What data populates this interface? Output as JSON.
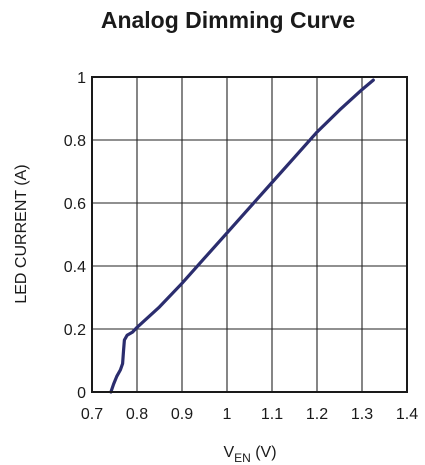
{
  "chart_data": {
    "type": "line",
    "title": "Analog Dimming Curve",
    "xlabel_main": "V",
    "xlabel_sub": "EN",
    "xlabel_unit": " (V)",
    "ylabel": "LED CURRENT (A)",
    "xlim": [
      0.7,
      1.4
    ],
    "ylim": [
      0,
      1
    ],
    "x_ticks": [
      {
        "value": 0.7,
        "label": "0.7"
      },
      {
        "value": 0.8,
        "label": "0.8"
      },
      {
        "value": 0.9,
        "label": "0.9"
      },
      {
        "value": 1.0,
        "label": "1"
      },
      {
        "value": 1.1,
        "label": "1.1"
      },
      {
        "value": 1.2,
        "label": "1.2"
      },
      {
        "value": 1.3,
        "label": "1.3"
      },
      {
        "value": 1.4,
        "label": "1.4"
      }
    ],
    "y_ticks": [
      {
        "value": 0,
        "label": "0"
      },
      {
        "value": 0.2,
        "label": "0.2"
      },
      {
        "value": 0.4,
        "label": "0.4"
      },
      {
        "value": 0.6,
        "label": "0.6"
      },
      {
        "value": 0.8,
        "label": "0.8"
      },
      {
        "value": 1,
        "label": "1"
      }
    ],
    "x_gridlines": [
      0.8,
      0.9,
      1.0,
      1.1,
      1.2,
      1.3
    ],
    "y_gridlines": [
      0.2,
      0.4,
      0.6,
      0.8
    ],
    "grid": true,
    "series": [
      {
        "color": "#2b2d6e",
        "x": [
          0.742,
          0.748,
          0.755,
          0.763,
          0.768,
          0.77,
          0.772,
          0.778,
          0.79,
          0.8,
          0.85,
          0.9,
          0.95,
          1.0,
          1.05,
          1.1,
          1.15,
          1.2,
          1.25,
          1.3,
          1.325
        ],
        "y": [
          0.0,
          0.025,
          0.05,
          0.07,
          0.09,
          0.13,
          0.165,
          0.18,
          0.19,
          0.205,
          0.27,
          0.345,
          0.425,
          0.505,
          0.585,
          0.665,
          0.745,
          0.825,
          0.895,
          0.96,
          0.99
        ]
      }
    ]
  }
}
